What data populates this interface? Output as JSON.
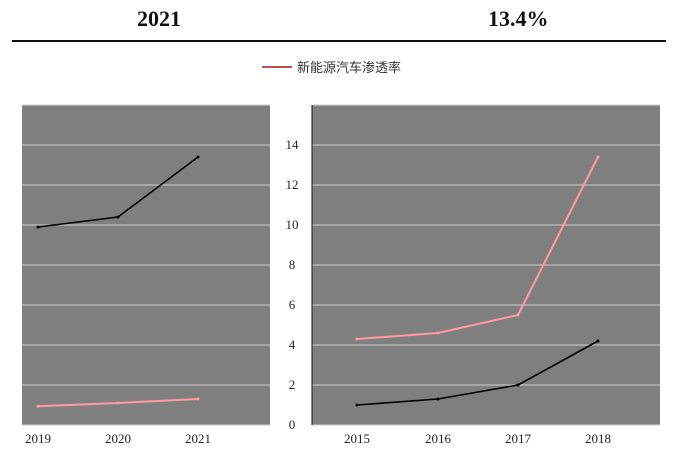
{
  "header": {
    "year": "2021",
    "value": "13.4%"
  },
  "chart_data": [
    {
      "type": "line",
      "panel": "left",
      "x": [
        "2019",
        "2020",
        "2021"
      ],
      "series": [
        {
          "color": "#ff9aa5",
          "values": [
            0.94,
            1.1,
            1.3
          ]
        },
        {
          "color": "#000000",
          "values": [
            9.9,
            10.4,
            13.4
          ]
        }
      ],
      "tick_labels_x": [
        "2019",
        "2020",
        "2021"
      ],
      "grid": true,
      "background": "#7f7f7f"
    },
    {
      "type": "line",
      "panel": "right",
      "legend": [
        "新能源汽车渗透率"
      ],
      "legend_placement": "top-center",
      "x": [
        "2015",
        "2016",
        "2017",
        "2018"
      ],
      "series": [
        {
          "name": "新能源汽车渗透率",
          "color": "#ff9aa5",
          "values": [
            4.3,
            4.6,
            5.5,
            13.4
          ]
        },
        {
          "color": "#000000",
          "values": [
            1.0,
            1.3,
            2.0,
            4.2
          ]
        }
      ],
      "tick_labels_x": [
        "2015",
        "2016",
        "2017",
        "2018"
      ],
      "tick_labels_y": [
        "0",
        "2",
        "4",
        "6",
        "8",
        "10",
        "12",
        "14"
      ],
      "ylim": [
        0,
        16
      ],
      "grid": true,
      "background": "#7f7f7f"
    }
  ]
}
